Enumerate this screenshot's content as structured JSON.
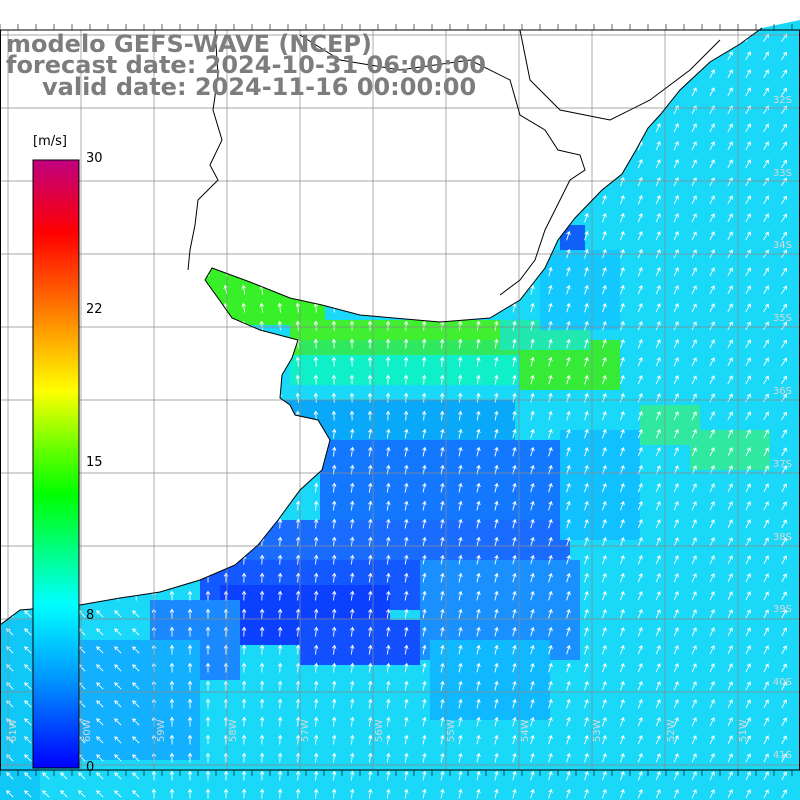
{
  "title": {
    "model": "modelo GEFS-WAVE (NCEP)",
    "forecast": "forecast date: 2024-10-31 06:00:00",
    "valid": "valid date: 2024-11-16 00:00:00"
  },
  "colorbar": {
    "unit": "[m/s]",
    "ticks": [
      "30",
      "22",
      "15",
      "8",
      "0"
    ],
    "tick_values": [
      30,
      22,
      15,
      8,
      0
    ],
    "colors": [
      "#0000ff",
      "#0090ff",
      "#00ffff",
      "#00ff00",
      "#ffff00",
      "#ff8000",
      "#ff0000",
      "#c00080"
    ]
  },
  "grid": {
    "lat_labels": [
      "32S",
      "33S",
      "34S",
      "35S",
      "36S",
      "37S",
      "38S",
      "39S",
      "40S",
      "41S"
    ],
    "lon_labels": [
      "61W",
      "60W",
      "59W",
      "58W",
      "57W",
      "56W",
      "55W",
      "54W",
      "53W",
      "52W",
      "51W"
    ]
  },
  "field": {
    "variable": "wind speed and direction",
    "dominant_color": "#19d8f8",
    "calm_color": "#1040ff",
    "strong_color": "#40f020"
  }
}
